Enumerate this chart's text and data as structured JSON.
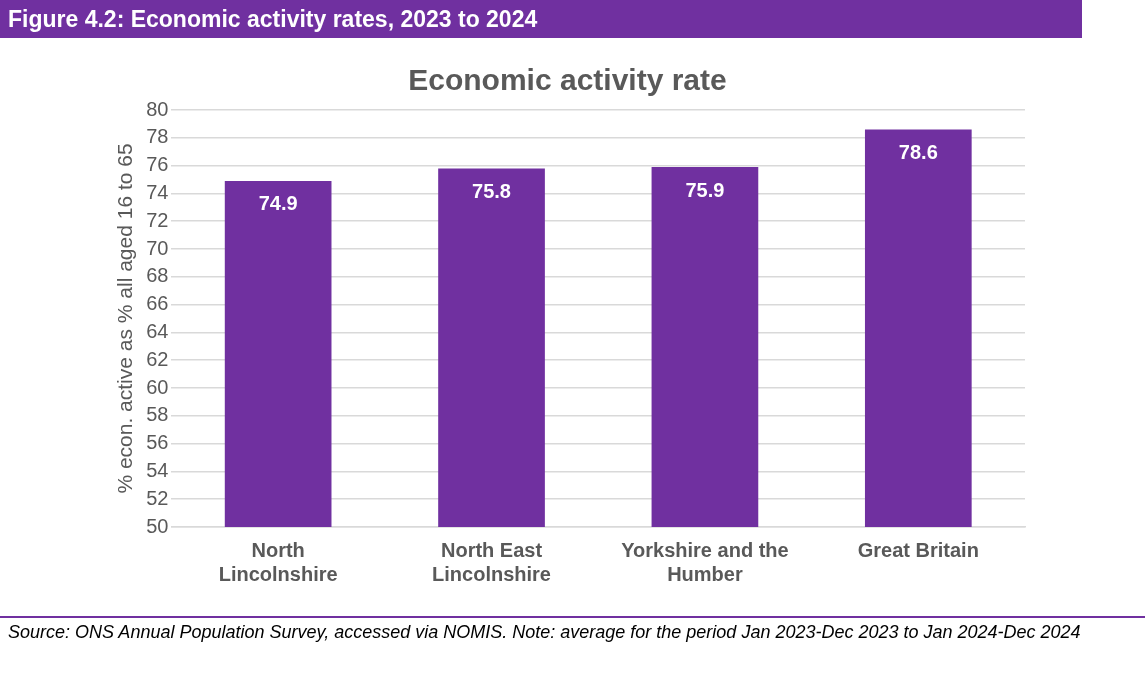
{
  "chart_data": {
    "type": "bar",
    "title": "Figure 4.2: Economic activity rates, 2023 to 2024",
    "subtitle": "Economic activity rate",
    "ylabel": "% econ. active as % all aged 16 to 65",
    "categories": [
      "North Lincolnshire",
      "North East Lincolnshire",
      "Yorkshire and the Humber",
      "Great Britain"
    ],
    "values": [
      74.9,
      75.8,
      75.9,
      78.6
    ],
    "color": "#7030a0",
    "data_labels": true,
    "ylim": [
      50,
      80
    ],
    "yticks": [
      50,
      52,
      54,
      56,
      58,
      60,
      62,
      64,
      66,
      68,
      70,
      72,
      74,
      76,
      78,
      80
    ],
    "grid": "y",
    "legend": false,
    "annotations": [
      "Source: ONS Annual Population Survey, accessed via NOMIS. Note:  average for the period Jan 2023-Dec 2023 to Jan 2024-Dec 2024"
    ]
  }
}
